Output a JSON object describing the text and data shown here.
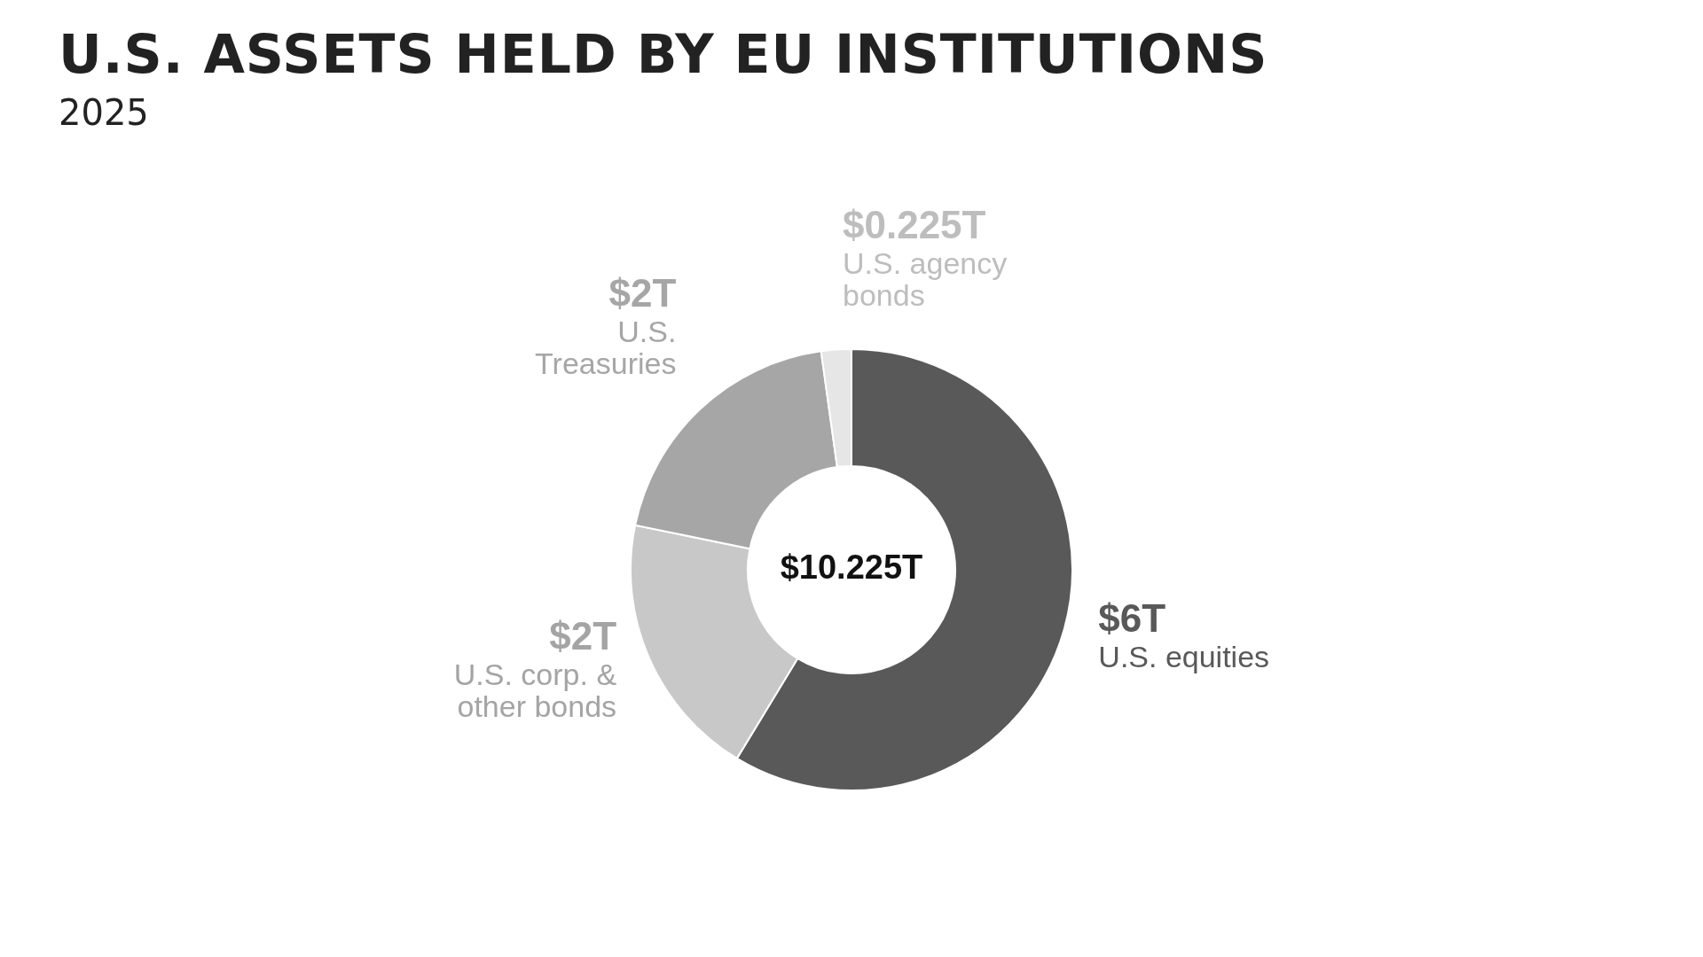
{
  "chart_data": {
    "type": "donut",
    "title": "U.S. ASSETS HELD BY EU INSTITUTIONS",
    "subtitle": "2025",
    "categories": [
      "U.S. equities",
      "U.S. corp. & other bonds",
      "U.S. Treasuries",
      "U.S. agency bonds"
    ],
    "values": [
      6,
      2,
      2,
      0.225
    ],
    "value_labels": [
      "$6T",
      "$2T",
      "$2T",
      "$0.225T"
    ],
    "colors": [
      "#595959",
      "#c8c8c8",
      "#a6a6a6",
      "#e6e6e6"
    ],
    "annotations": [
      "$10.225T"
    ],
    "legend": false
  }
}
